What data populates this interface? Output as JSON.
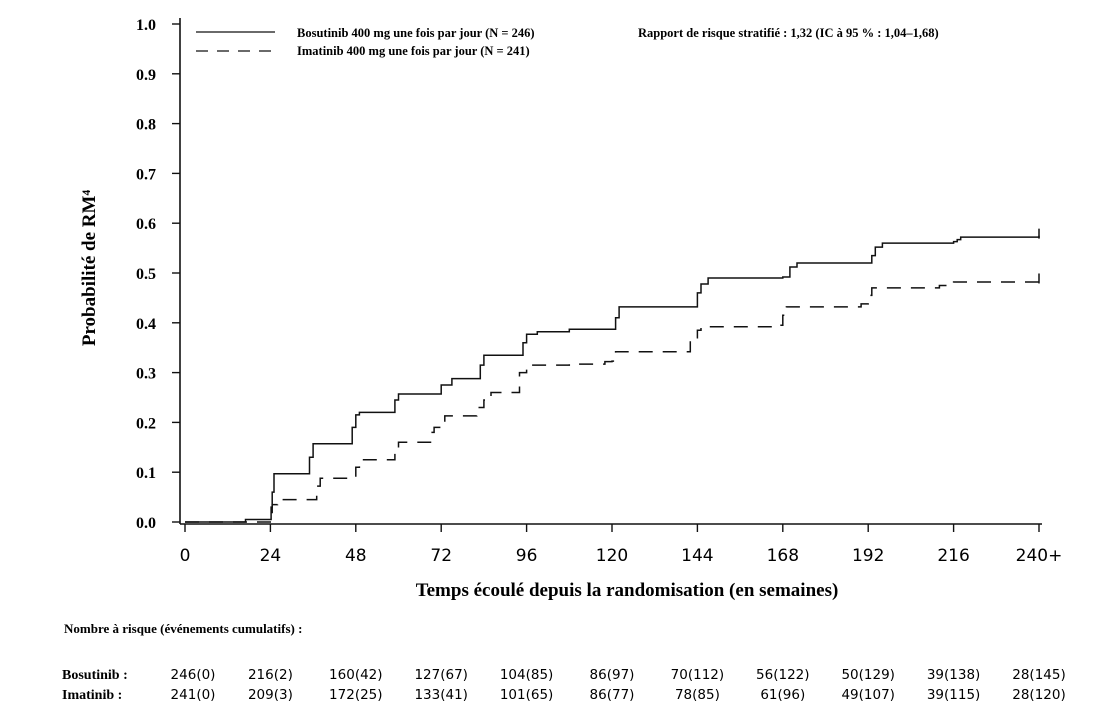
{
  "chart_data": {
    "type": "line",
    "ylabel": "Probabilité de RM⁴",
    "xlabel": "Temps écoulé depuis la randomisation (en semaines)",
    "xlim": [
      0,
      240
    ],
    "ylim": [
      0.0,
      1.0
    ],
    "x_tick_labels": [
      "0",
      "24",
      "48",
      "72",
      "96",
      "120",
      "144",
      "168",
      "192",
      "216",
      "240+"
    ],
    "y_tick_labels": [
      "0.0",
      "0.1",
      "0.2",
      "0.3",
      "0.4",
      "0.5",
      "0.6",
      "0.7",
      "0.8",
      "0.9",
      "1.0"
    ],
    "annotation": "Rapport de risque stratifié : 1,32 (IC à 95 % : 1,04–1,68)",
    "grid": false,
    "legend_position": "top-left",
    "series": [
      {
        "name": "Bosutinib 400 mg une fois par jour (N = 246)",
        "dash": "solid",
        "color": "#111111",
        "x": [
          0,
          12,
          17,
          24,
          24.2,
          24.5,
          25,
          34,
          35,
          36,
          46,
          47,
          48,
          49,
          58,
          59,
          60,
          70,
          72,
          75,
          82,
          83,
          84,
          93,
          95,
          96,
          99,
          108,
          120,
          121,
          122,
          143,
          144,
          145,
          147,
          168,
          170,
          172,
          192,
          193,
          194,
          196,
          216,
          217,
          218,
          240
        ],
        "y": [
          0.0,
          0.0,
          0.005,
          0.005,
          0.03,
          0.06,
          0.097,
          0.097,
          0.13,
          0.157,
          0.157,
          0.19,
          0.215,
          0.22,
          0.22,
          0.245,
          0.257,
          0.257,
          0.275,
          0.288,
          0.288,
          0.315,
          0.335,
          0.335,
          0.36,
          0.377,
          0.382,
          0.387,
          0.387,
          0.41,
          0.432,
          0.432,
          0.46,
          0.478,
          0.49,
          0.492,
          0.512,
          0.52,
          0.52,
          0.535,
          0.552,
          0.56,
          0.563,
          0.567,
          0.572,
          0.575
        ]
      },
      {
        "name": "Imatinib 400 mg une fois par jour (N = 241)",
        "dash": "dashed",
        "color": "#111111",
        "x": [
          0,
          24,
          24.5,
          26,
          36,
          37,
          38,
          46,
          48,
          49,
          58,
          59,
          60,
          68,
          69,
          70,
          72,
          73,
          80,
          82,
          84,
          86,
          92,
          94,
          96,
          97,
          108,
          118,
          120,
          121,
          140,
          142,
          144,
          145,
          166,
          168,
          169,
          190,
          192,
          193,
          212,
          216,
          240
        ],
        "y": [
          0.0,
          0.0,
          0.035,
          0.045,
          0.045,
          0.072,
          0.088,
          0.088,
          0.11,
          0.125,
          0.125,
          0.145,
          0.16,
          0.16,
          0.18,
          0.19,
          0.2,
          0.213,
          0.213,
          0.23,
          0.245,
          0.26,
          0.26,
          0.3,
          0.308,
          0.315,
          0.317,
          0.322,
          0.323,
          0.342,
          0.342,
          0.37,
          0.385,
          0.392,
          0.395,
          0.415,
          0.432,
          0.438,
          0.455,
          0.47,
          0.475,
          0.482,
          0.485
        ]
      }
    ]
  },
  "risk_table": {
    "caption": "Nombre à risque (événements cumulatifs) :",
    "rows": [
      {
        "label": "Bosutinib :",
        "values": [
          "246(0)",
          "216(2)",
          "160(42)",
          "127(67)",
          "104(85)",
          "86(97)",
          "70(112)",
          "56(122)",
          "50(129)",
          "39(138)",
          "28(145)"
        ]
      },
      {
        "label": "Imatinib :",
        "values": [
          "241(0)",
          "209(3)",
          "172(25)",
          "133(41)",
          "101(65)",
          "86(77)",
          "78(85)",
          "61(96)",
          "49(107)",
          "39(115)",
          "28(120)"
        ]
      }
    ]
  }
}
